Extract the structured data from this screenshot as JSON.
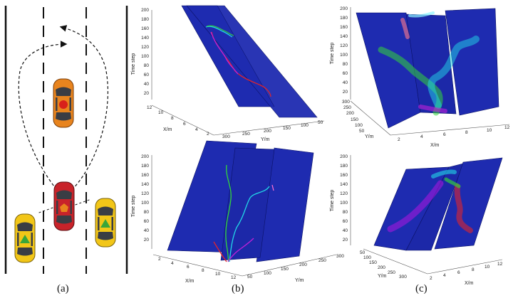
{
  "captions": {
    "a": "(a)",
    "b": "(b)",
    "c": "(c)"
  },
  "axis_labels": {
    "x": "X/m",
    "y": "Y/m",
    "z": "Time step"
  },
  "time_ticks": [
    "200",
    "180",
    "160",
    "140",
    "120",
    "100",
    "80",
    "60",
    "40",
    "20"
  ],
  "b_top": {
    "x_ticks": [
      "12",
      "10",
      "8",
      "6",
      "4",
      "2"
    ],
    "y_ticks": [
      "300",
      "250",
      "200",
      "150",
      "100",
      "50"
    ]
  },
  "b_bottom": {
    "x_ticks": [
      "2",
      "4",
      "6",
      "8",
      "10",
      "12"
    ],
    "y_ticks": [
      "300",
      "250",
      "200",
      "150",
      "100",
      "50"
    ]
  },
  "c_top": {
    "x_ticks": [
      "2",
      "4",
      "6",
      "8",
      "10",
      "12"
    ],
    "y_ticks": [
      "300",
      "250",
      "200",
      "150",
      "100",
      "50"
    ]
  },
  "c_bottom": {
    "x_ticks": [
      "2",
      "4",
      "6",
      "8",
      "10",
      "12"
    ],
    "y_ticks": [
      "50",
      "100",
      "150",
      "200",
      "250",
      "300"
    ]
  },
  "colors": {
    "plane": "#1e2bb0",
    "plane_edge": "#0b1266",
    "ego_car": "#c8232a",
    "front_car": "#e8841e",
    "side_car": "#f2c618",
    "road_line": "#111111"
  },
  "icons": {
    "front_marker": "circle",
    "ego_marker": "pentagon",
    "side_marker": "triangle"
  }
}
